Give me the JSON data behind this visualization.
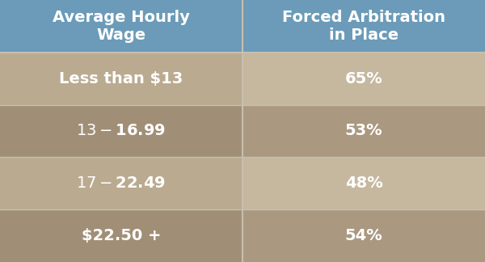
{
  "col1_header": "Average Hourly\nWage",
  "col2_header": "Forced Arbitration\nin Place",
  "rows": [
    [
      "Less than $13",
      "65%"
    ],
    [
      "$13-$16.99",
      "53%"
    ],
    [
      "$17-$22.49",
      "48%"
    ],
    [
      "$22.50 +",
      "54%"
    ]
  ],
  "header_bg": "#6b9bb8",
  "row_colors_left": [
    "#baaa90",
    "#a08f76",
    "#baaa90",
    "#a08f76"
  ],
  "row_colors_right": [
    "#c5b89f",
    "#aa9880",
    "#c5b89f",
    "#aa9880"
  ],
  "header_text_color": "#ffffff",
  "cell_text_color": "#ffffff",
  "divider_color": "#c8bfb0",
  "header_fontsize": 14,
  "cell_fontsize": 14,
  "fig_width": 6.0,
  "fig_height": 3.24,
  "dpi": 100,
  "col_split": 0.5
}
